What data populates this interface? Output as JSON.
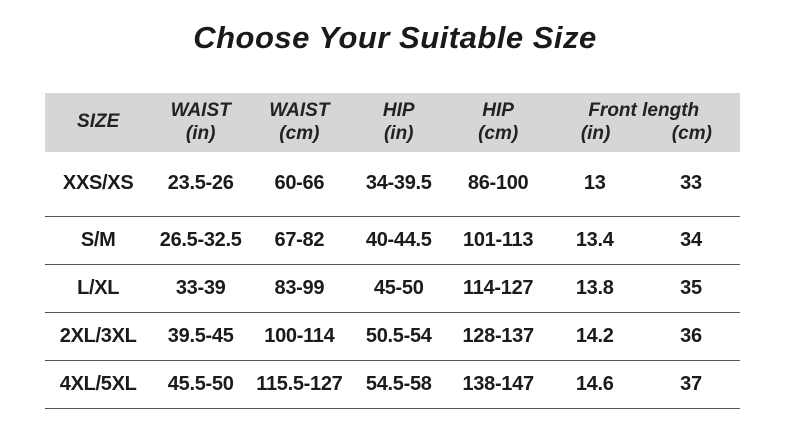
{
  "title": "Choose Your Suitable Size",
  "colors": {
    "background": "#ffffff",
    "header_bg": "#d6d6d6",
    "text": "#1b1b1b",
    "divider": "#555555"
  },
  "header": {
    "size": "SIZE",
    "cols": [
      {
        "label": "WAIST",
        "unit": "(in)"
      },
      {
        "label": "WAIST",
        "unit": "(cm)"
      },
      {
        "label": "HIP",
        "unit": "(in)"
      },
      {
        "label": "HIP",
        "unit": "(cm)"
      }
    ],
    "front": {
      "label": "Front length",
      "units": [
        "(in)",
        "(cm)"
      ]
    }
  },
  "rows": [
    {
      "size": "XXS/XS",
      "waist_in": "23.5-26",
      "waist_cm": "60-66",
      "hip_in": "34-39.5",
      "hip_cm": "86-100",
      "front_in": "13",
      "front_cm": "33"
    },
    {
      "size": "S/M",
      "waist_in": "26.5-32.5",
      "waist_cm": "67-82",
      "hip_in": "40-44.5",
      "hip_cm": "101-113",
      "front_in": "13.4",
      "front_cm": "34"
    },
    {
      "size": "L/XL",
      "waist_in": "33-39",
      "waist_cm": "83-99",
      "hip_in": "45-50",
      "hip_cm": "114-127",
      "front_in": "13.8",
      "front_cm": "35"
    },
    {
      "size": "2XL/3XL",
      "waist_in": "39.5-45",
      "waist_cm": "100-114",
      "hip_in": "50.5-54",
      "hip_cm": "128-137",
      "front_in": "14.2",
      "front_cm": "36"
    },
    {
      "size": "4XL/5XL",
      "waist_in": "45.5-50",
      "waist_cm": "115.5-127",
      "hip_in": "54.5-58",
      "hip_cm": "138-147",
      "front_in": "14.6",
      "front_cm": "37"
    }
  ],
  "chart_data": {
    "type": "table",
    "title": "Choose Your Suitable Size",
    "columns": [
      "SIZE",
      "WAIST (in)",
      "WAIST (cm)",
      "HIP (in)",
      "HIP (cm)",
      "Front length (in)",
      "Front length (cm)"
    ],
    "rows": [
      [
        "XXS/XS",
        "23.5-26",
        "60-66",
        "34-39.5",
        "86-100",
        "13",
        "33"
      ],
      [
        "S/M",
        "26.5-32.5",
        "67-82",
        "40-44.5",
        "101-113",
        "13.4",
        "34"
      ],
      [
        "L/XL",
        "33-39",
        "83-99",
        "45-50",
        "114-127",
        "13.8",
        "35"
      ],
      [
        "2XL/3XL",
        "39.5-45",
        "100-114",
        "50.5-54",
        "128-137",
        "14.2",
        "36"
      ],
      [
        "4XL/5XL",
        "45.5-50",
        "115.5-127",
        "54.5-58",
        "138-147",
        "14.6",
        "37"
      ]
    ]
  }
}
